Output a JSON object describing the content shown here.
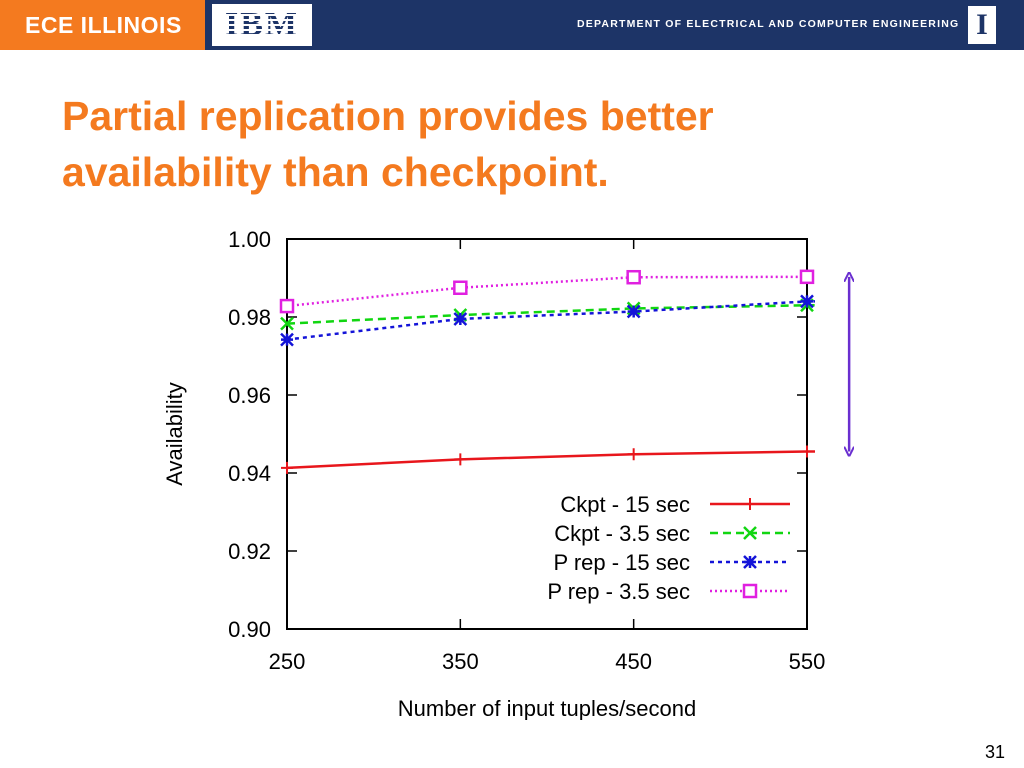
{
  "header": {
    "ece_label": "ECE ILLINOIS",
    "ibm_label": "IBM",
    "department": "DEPARTMENT OF ELECTRICAL AND COMPUTER ENGINEERING",
    "illinois_logo": "I",
    "brand_orange": "#f47a1f",
    "brand_navy": "#1d3467"
  },
  "slide": {
    "title_line1": "Partial replication provides better",
    "title_line2": "availability than checkpoint.",
    "page_number": "31"
  },
  "chart_data": {
    "type": "line",
    "x": [
      250,
      350,
      450,
      550
    ],
    "xlim": [
      250,
      550
    ],
    "ylim": [
      0.9,
      1.0
    ],
    "xticks": [
      "250",
      "350",
      "450",
      "550"
    ],
    "yticks": [
      "0.90",
      "0.92",
      "0.94",
      "0.96",
      "0.98",
      "1.00"
    ],
    "xlabel": "Number of input tuples/second",
    "ylabel": "Availability",
    "legend_position": "bottom-right",
    "grid": false,
    "series": [
      {
        "name": "Ckpt - 15 sec",
        "values": [
          0.9413,
          0.9435,
          0.9448,
          0.9455
        ],
        "color": "#e8161c",
        "dash": "",
        "marker": "plus"
      },
      {
        "name": "Ckpt - 3.5 sec",
        "values": [
          0.9783,
          0.9805,
          0.9822,
          0.983
        ],
        "color": "#11d611",
        "dash": "8,5",
        "marker": "cross"
      },
      {
        "name": "P rep - 15 sec",
        "values": [
          0.9742,
          0.9795,
          0.9814,
          0.984
        ],
        "color": "#1414d8",
        "dash": "4,4",
        "marker": "star"
      },
      {
        "name": "P rep - 3.5 sec",
        "values": [
          0.9828,
          0.9875,
          0.9902,
          0.9903
        ],
        "color": "#e020e0",
        "dash": "2,3",
        "marker": "square"
      }
    ],
    "annotation": {
      "type": "double-arrow",
      "x": 557,
      "from": 0.9455,
      "to": 0.9903,
      "color": "#6a2fd0"
    }
  }
}
